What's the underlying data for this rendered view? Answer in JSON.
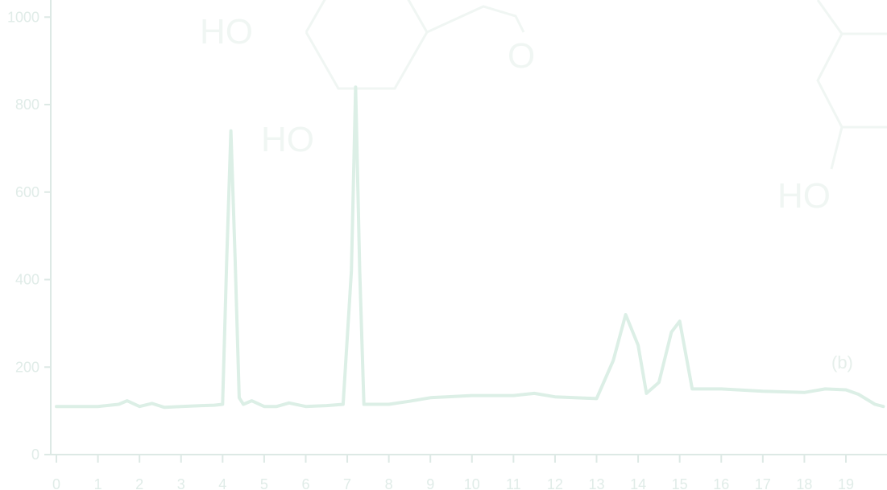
{
  "chart_data": {
    "type": "line",
    "title": "",
    "xlabel": "",
    "ylabel": "",
    "xlim": [
      0,
      19.9
    ],
    "ylim": [
      0,
      1000
    ],
    "x_ticks": [
      0,
      1,
      2,
      3,
      4,
      5,
      6,
      7,
      8,
      9,
      10,
      11,
      12,
      13,
      14,
      15,
      16,
      17,
      18,
      19
    ],
    "y_ticks": [
      0,
      200,
      400,
      600,
      800,
      1000
    ],
    "x_tick_labels": [
      "0",
      "1",
      "2",
      "3",
      "4",
      "5",
      "6",
      "7",
      "8",
      "9",
      "10",
      "11",
      "12",
      "13",
      "14",
      "15",
      "16",
      "17",
      "18",
      "19"
    ],
    "y_tick_labels": [
      "0",
      "200",
      "400",
      "600",
      "800",
      "1000"
    ],
    "grid": false,
    "annotation": "(b)",
    "structure_labels": [
      "HO",
      "HO",
      "O",
      "HO"
    ],
    "series": [
      {
        "x": [
          0.0,
          1.0,
          1.5,
          1.7,
          2.0,
          2.3,
          2.6,
          3.0,
          3.5,
          3.8,
          4.0,
          4.1,
          4.2,
          4.3,
          4.4,
          4.5,
          4.7,
          5.0,
          5.3,
          5.6,
          6.0,
          6.5,
          6.9,
          7.1,
          7.2,
          7.3,
          7.4,
          7.6,
          8.0,
          8.5,
          9.0,
          10.0,
          11.0,
          11.5,
          12.0,
          13.0,
          13.4,
          13.7,
          14.0,
          14.2,
          14.5,
          14.8,
          15.0,
          15.3,
          16.0,
          17.0,
          18.0,
          18.5,
          19.0,
          19.3,
          19.7,
          19.9
        ],
        "values": [
          110,
          110,
          115,
          123,
          110,
          117,
          108,
          110,
          112,
          113,
          115,
          450,
          740,
          450,
          130,
          115,
          123,
          110,
          110,
          118,
          110,
          112,
          115,
          420,
          840,
          420,
          115,
          115,
          115,
          122,
          130,
          135,
          135,
          140,
          132,
          128,
          215,
          320,
          250,
          140,
          165,
          280,
          305,
          150,
          150,
          145,
          142,
          150,
          148,
          138,
          115,
          110
        ]
      }
    ]
  }
}
